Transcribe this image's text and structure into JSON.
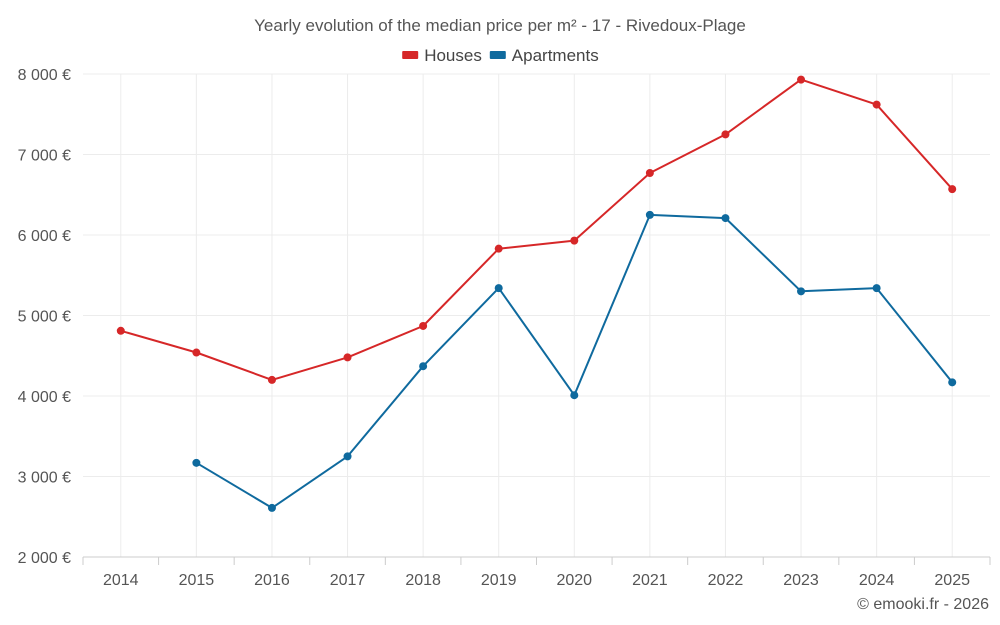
{
  "chart_data": {
    "type": "line",
    "title": "Yearly evolution of the median price per m² - 17 - Rivedoux-Plage",
    "categories": [
      "2014",
      "2015",
      "2016",
      "2017",
      "2018",
      "2019",
      "2020",
      "2021",
      "2022",
      "2023",
      "2024",
      "2025"
    ],
    "series": [
      {
        "name": "Houses",
        "color": "#d62728",
        "values": [
          4810,
          4540,
          4200,
          4480,
          4870,
          5830,
          5930,
          6770,
          7250,
          7930,
          7620,
          6570
        ]
      },
      {
        "name": "Apartments",
        "color": "#0f6a9e",
        "values": [
          null,
          3170,
          2610,
          3250,
          4370,
          5340,
          4010,
          6250,
          6210,
          5300,
          5340,
          4170
        ]
      }
    ],
    "ylim": [
      2000,
      8000
    ],
    "yticks": [
      2000,
      3000,
      4000,
      5000,
      6000,
      7000,
      8000
    ],
    "ytick_labels": [
      "2 000 €",
      "3 000 €",
      "4 000 €",
      "5 000 €",
      "6 000 €",
      "7 000 €",
      "8 000 €"
    ],
    "xlabel": "",
    "ylabel": "",
    "legend_position": "top-center",
    "grid": true
  },
  "credit": "© emooki.fr - 2026"
}
